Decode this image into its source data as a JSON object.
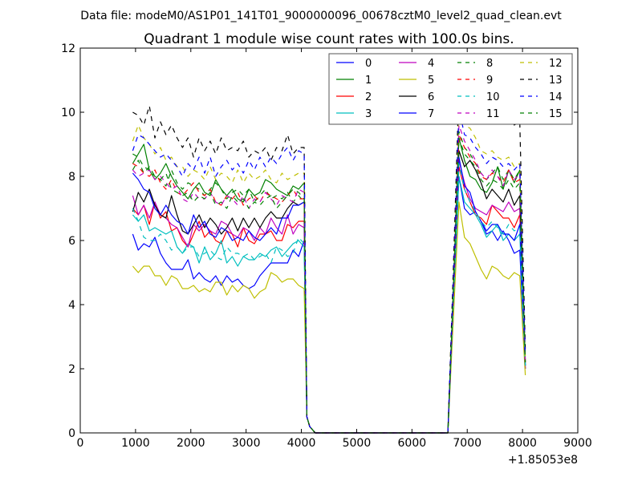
{
  "chart_data": {
    "type": "line",
    "suptitle": "Data file: modeM0/AS1P01_141T01_9000000096_00678cztM0_level2_quad_clean.evt",
    "title": "Quadrant 1 module wise count rates with 100.0s bins.",
    "xlabel": "",
    "ylabel": "",
    "x_offset_label": "+1.85053e8",
    "xlim": [
      0,
      9000
    ],
    "ylim": [
      0,
      12
    ],
    "xticks": [
      0,
      1000,
      2000,
      3000,
      4000,
      5000,
      6000,
      7000,
      8000,
      9000
    ],
    "yticks": [
      0,
      2,
      4,
      6,
      8,
      10,
      12
    ],
    "legend_position": "top-right",
    "legend_columns": 4,
    "x": [
      950,
      1050,
      1150,
      1250,
      1350,
      1450,
      1550,
      1650,
      1750,
      1850,
      1950,
      2050,
      2150,
      2250,
      2350,
      2450,
      2550,
      2650,
      2750,
      2850,
      2950,
      3050,
      3150,
      3250,
      3350,
      3450,
      3550,
      3650,
      3750,
      3850,
      3950,
      4050,
      4100,
      4150,
      4250,
      4350,
      6650,
      6750,
      6850,
      6950,
      7050,
      7150,
      7250,
      7350,
      7450,
      7550,
      7650,
      7750,
      7850,
      7950,
      8050
    ],
    "series": [
      {
        "name": "0",
        "color": "#0000ff",
        "dash": "solid",
        "values": [
          6.2,
          5.7,
          5.9,
          5.8,
          6.1,
          5.6,
          5.3,
          5.1,
          5.1,
          5.1,
          5.4,
          4.8,
          5.0,
          4.8,
          4.7,
          4.9,
          4.6,
          4.9,
          4.7,
          4.8,
          4.6,
          4.5,
          4.6,
          4.9,
          5.1,
          5.3,
          5.3,
          5.3,
          5.3,
          5.7,
          5.5,
          6.0,
          0.5,
          0.2,
          0,
          0,
          0,
          4.0,
          8.0,
          7.0,
          6.8,
          6.9,
          6.6,
          6.2,
          6.3,
          6.0,
          6.3,
          6.0,
          5.6,
          5.7,
          2.0
        ]
      },
      {
        "name": "1",
        "color": "#008000",
        "dash": "solid",
        "values": [
          8.4,
          8.7,
          9.0,
          8.2,
          7.9,
          8.1,
          8.4,
          8.0,
          7.7,
          7.5,
          7.3,
          7.6,
          7.8,
          7.5,
          7.4,
          7.9,
          7.6,
          7.4,
          7.6,
          7.3,
          7.2,
          7.6,
          7.4,
          7.5,
          7.9,
          7.8,
          7.6,
          7.5,
          7.4,
          7.7,
          7.6,
          7.8,
          0.5,
          0.2,
          0,
          0,
          0,
          4.3,
          9.2,
          8.5,
          8.0,
          7.9,
          7.6,
          7.5,
          7.8,
          8.3,
          7.6,
          8.2,
          7.8,
          8.2,
          2.2
        ]
      },
      {
        "name": "2",
        "color": "#ff0000",
        "dash": "solid",
        "values": [
          7.0,
          6.8,
          7.1,
          6.5,
          7.2,
          6.7,
          6.9,
          6.3,
          6.4,
          6.0,
          5.8,
          6.2,
          6.6,
          6.1,
          6.3,
          6.0,
          5.9,
          6.3,
          6.2,
          5.8,
          6.4,
          6.0,
          5.9,
          6.2,
          6.2,
          6.3,
          6.0,
          6.0,
          6.5,
          6.4,
          6.6,
          6.6,
          0.5,
          0.2,
          0,
          0,
          0,
          4.2,
          8.3,
          7.6,
          7.2,
          6.8,
          6.7,
          6.5,
          7.1,
          6.9,
          6.7,
          6.7,
          6.4,
          6.8,
          2.0
        ]
      },
      {
        "name": "3",
        "color": "#00bfbf",
        "dash": "solid",
        "values": [
          6.8,
          6.6,
          6.8,
          6.3,
          6.4,
          6.3,
          6.2,
          6.3,
          5.8,
          5.6,
          5.9,
          5.8,
          5.3,
          5.8,
          5.4,
          5.6,
          6.0,
          5.3,
          5.5,
          5.2,
          5.5,
          5.4,
          5.4,
          5.6,
          5.5,
          5.7,
          5.8,
          5.5,
          5.7,
          5.9,
          6.0,
          5.8,
          0.5,
          0.2,
          0,
          0,
          0,
          4.0,
          8.0,
          7.2,
          7.0,
          6.8,
          6.5,
          6.1,
          6.3,
          6.5,
          6.0,
          6.2,
          6.0,
          6.2,
          2.0
        ]
      },
      {
        "name": "4",
        "color": "#bf00bf",
        "dash": "solid",
        "values": [
          7.4,
          6.8,
          7.1,
          6.7,
          7.2,
          6.8,
          6.7,
          6.5,
          6.4,
          6.1,
          5.8,
          6.5,
          6.3,
          6.5,
          6.3,
          6.2,
          6.6,
          6.5,
          6.2,
          6.1,
          6.4,
          6.3,
          6.0,
          6.4,
          6.2,
          6.7,
          6.4,
          6.2,
          6.8,
          6.2,
          6.5,
          6.4,
          0.5,
          0.2,
          0,
          0,
          0,
          4.2,
          8.5,
          7.8,
          7.3,
          7.0,
          6.9,
          6.8,
          7.1,
          7.0,
          6.9,
          7.2,
          6.9,
          7.0,
          2.0
        ]
      },
      {
        "name": "5",
        "color": "#bfbf00",
        "dash": "solid",
        "values": [
          5.2,
          5.0,
          5.2,
          5.2,
          4.9,
          4.9,
          4.6,
          4.9,
          4.8,
          4.5,
          4.5,
          4.6,
          4.4,
          4.5,
          4.4,
          4.7,
          4.7,
          4.3,
          4.6,
          4.4,
          4.6,
          4.5,
          4.2,
          4.4,
          4.5,
          5.0,
          4.9,
          4.7,
          4.8,
          4.8,
          4.6,
          4.5,
          0.5,
          0.2,
          0,
          0,
          0,
          3.6,
          7.2,
          6.1,
          5.9,
          5.5,
          5.1,
          4.8,
          5.2,
          5.1,
          4.9,
          4.8,
          5.0,
          4.9,
          1.8
        ]
      },
      {
        "name": "6",
        "color": "#000000",
        "dash": "solid",
        "values": [
          6.9,
          7.5,
          7.2,
          7.6,
          7.1,
          6.8,
          6.7,
          7.4,
          6.8,
          6.3,
          6.2,
          6.5,
          6.8,
          6.4,
          6.7,
          6.5,
          6.2,
          6.4,
          6.7,
          6.3,
          6.7,
          6.4,
          6.7,
          6.4,
          6.7,
          6.9,
          6.7,
          6.7,
          7.0,
          7.2,
          7.1,
          7.2,
          0.5,
          0.2,
          0,
          0,
          0,
          4.4,
          8.8,
          8.3,
          8.5,
          8.2,
          7.8,
          7.3,
          7.6,
          7.4,
          7.2,
          7.6,
          7.1,
          7.4,
          2.1
        ]
      },
      {
        "name": "7",
        "color": "#0000ff",
        "dash": "solid",
        "values": [
          8.1,
          7.9,
          7.6,
          7.5,
          7.0,
          6.8,
          7.1,
          6.8,
          6.6,
          6.5,
          6.2,
          6.8,
          6.4,
          6.6,
          6.2,
          6.1,
          6.4,
          6.3,
          6.0,
          6.1,
          6.0,
          6.3,
          6.1,
          6.0,
          6.2,
          6.4,
          6.2,
          6.7,
          6.7,
          7.1,
          7.1,
          7.2,
          0.5,
          0.2,
          0,
          0,
          0,
          4.3,
          8.6,
          7.7,
          7.5,
          6.9,
          6.6,
          6.3,
          6.5,
          6.5,
          6.2,
          6.2,
          6.0,
          6.5,
          2.1
        ]
      },
      {
        "name": "8",
        "color": "#008000",
        "dash": "dashed",
        "values": [
          8.2,
          8.5,
          8.1,
          8.3,
          8.0,
          7.9,
          7.7,
          8.2,
          7.8,
          7.6,
          7.8,
          7.7,
          7.6,
          7.4,
          7.6,
          7.8,
          7.6,
          7.3,
          7.5,
          7.6,
          7.4,
          7.6,
          7.2,
          7.4,
          7.6,
          7.3,
          7.4,
          7.3,
          7.5,
          7.2,
          7.4,
          7.2,
          0.5,
          0.2,
          0,
          0,
          0,
          4.6,
          9.4,
          8.9,
          8.7,
          8.4,
          8.1,
          7.9,
          8.1,
          8.3,
          7.9,
          8.2,
          7.9,
          8.2,
          2.2
        ]
      },
      {
        "name": "9",
        "color": "#ff0000",
        "dash": "dashed",
        "values": [
          8.4,
          8.3,
          8.1,
          8.0,
          8.2,
          7.8,
          7.6,
          7.9,
          7.5,
          7.4,
          7.6,
          7.8,
          7.5,
          7.4,
          7.6,
          7.2,
          7.1,
          7.4,
          7.3,
          7.5,
          7.1,
          7.3,
          7.4,
          7.2,
          7.5,
          7.4,
          7.3,
          7.2,
          7.4,
          7.6,
          7.3,
          7.3,
          0.5,
          0.2,
          0,
          0,
          0,
          4.5,
          9.3,
          8.9,
          8.6,
          8.4,
          8.0,
          7.9,
          8.1,
          8.0,
          7.8,
          8.2,
          7.8,
          7.9,
          2.2
        ]
      },
      {
        "name": "10",
        "color": "#00bfbf",
        "dash": "dashed",
        "values": [
          7.0,
          6.6,
          6.1,
          6.0,
          6.0,
          6.2,
          6.0,
          5.7,
          5.8,
          5.6,
          5.8,
          5.8,
          5.5,
          5.6,
          5.7,
          5.5,
          5.4,
          5.8,
          5.6,
          5.6,
          5.5,
          5.6,
          5.4,
          5.5,
          5.6,
          5.3,
          5.8,
          5.7,
          5.5,
          5.6,
          6.1,
          5.9,
          0.5,
          0.2,
          0,
          0,
          0,
          4.1,
          8.4,
          7.6,
          7.2,
          6.9,
          6.6,
          6.4,
          6.6,
          6.4,
          6.2,
          6.5,
          6.3,
          6.4,
          2.1
        ]
      },
      {
        "name": "11",
        "color": "#bf00bf",
        "dash": "dashed",
        "values": [
          8.2,
          8.0,
          8.1,
          8.2,
          7.9,
          8.0,
          7.8,
          7.6,
          7.7,
          7.3,
          7.2,
          7.5,
          7.3,
          7.3,
          7.5,
          7.2,
          7.1,
          7.4,
          7.3,
          7.1,
          7.4,
          7.0,
          7.3,
          7.2,
          7.5,
          7.3,
          7.1,
          7.4,
          7.3,
          7.2,
          7.6,
          7.5,
          0.5,
          0.2,
          0,
          0,
          0,
          4.5,
          9.6,
          9.1,
          8.8,
          8.5,
          8.1,
          7.9,
          8.2,
          8.0,
          7.7,
          8.2,
          7.9,
          8.1,
          2.2
        ]
      },
      {
        "name": "12",
        "color": "#bfbf00",
        "dash": "dashed",
        "values": [
          9.1,
          9.6,
          9.2,
          9.0,
          8.7,
          8.9,
          8.5,
          8.6,
          8.3,
          8.3,
          8.0,
          8.2,
          8.1,
          7.9,
          8.3,
          7.9,
          8.1,
          8.0,
          7.8,
          8.2,
          7.8,
          8.1,
          7.9,
          8.0,
          8.2,
          7.9,
          7.8,
          8.1,
          7.9,
          8.0,
          8.1,
          8.1,
          0.5,
          0.2,
          0,
          0,
          0,
          5.0,
          10.4,
          9.6,
          9.5,
          9.2,
          8.8,
          8.7,
          8.8,
          8.6,
          8.5,
          8.6,
          8.3,
          8.4,
          2.4
        ]
      },
      {
        "name": "13",
        "color": "#000000",
        "dash": "dashed",
        "values": [
          10.0,
          9.9,
          9.6,
          10.2,
          9.2,
          9.7,
          9.3,
          9.6,
          9.2,
          8.9,
          9.2,
          8.6,
          9.2,
          8.8,
          9.1,
          8.7,
          9.2,
          8.8,
          8.9,
          8.8,
          9.1,
          8.6,
          8.8,
          8.7,
          8.9,
          8.5,
          8.9,
          8.8,
          9.3,
          8.7,
          8.9,
          8.9,
          0.5,
          0.2,
          0,
          0,
          0,
          5.2,
          10.8,
          10.3,
          10.5,
          10.4,
          10.0,
          9.8,
          10.1,
          9.9,
          10.0,
          9.9,
          9.6,
          9.7,
          2.6
        ]
      },
      {
        "name": "14",
        "color": "#0000ff",
        "dash": "dashed",
        "values": [
          8.8,
          9.3,
          9.2,
          9.0,
          8.8,
          8.6,
          8.7,
          8.5,
          8.3,
          8.0,
          8.4,
          8.2,
          8.6,
          8.1,
          8.6,
          8.0,
          8.3,
          8.5,
          8.2,
          8.4,
          8.1,
          8.5,
          8.2,
          8.6,
          8.3,
          8.6,
          8.4,
          8.7,
          8.9,
          8.5,
          8.8,
          8.7,
          0.5,
          0.2,
          0,
          0,
          0,
          4.8,
          10.1,
          9.3,
          9.2,
          8.9,
          8.7,
          8.4,
          8.6,
          8.5,
          8.3,
          8.4,
          8.2,
          8.4,
          2.4
        ]
      },
      {
        "name": "15",
        "color": "#008000",
        "dash": "dashed",
        "values": [
          8.7,
          8.6,
          8.3,
          8.2,
          8.0,
          7.9,
          8.1,
          7.6,
          7.5,
          7.4,
          7.5,
          7.2,
          7.4,
          7.3,
          7.5,
          7.1,
          7.2,
          7.0,
          7.4,
          7.2,
          7.3,
          7.0,
          7.2,
          7.1,
          7.3,
          7.4,
          7.0,
          7.2,
          7.4,
          7.6,
          7.5,
          7.3,
          0.5,
          0.2,
          0,
          0,
          0,
          4.5,
          9.2,
          8.7,
          8.5,
          8.3,
          7.9,
          7.7,
          7.9,
          7.8,
          7.6,
          7.9,
          7.6,
          7.8,
          2.2
        ]
      }
    ]
  }
}
